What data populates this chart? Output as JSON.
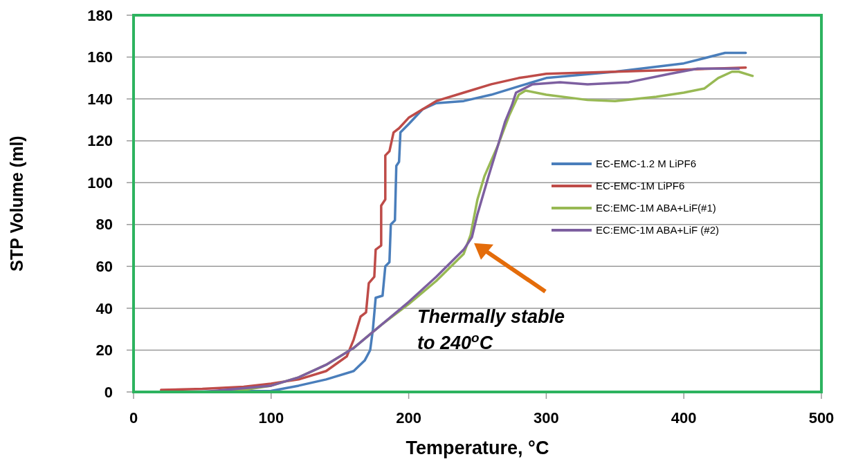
{
  "chart_data": {
    "type": "line",
    "xlabel": "Temperature, °C",
    "ylabel": "STP Volume (ml)",
    "xlim": [
      0,
      500
    ],
    "xticks": [
      0,
      100,
      200,
      300,
      400,
      500
    ],
    "ylim": [
      0,
      180
    ],
    "yticks": [
      0,
      20,
      40,
      60,
      80,
      100,
      120,
      140,
      160,
      180
    ],
    "grid": "y",
    "legend": "right",
    "marker": "none",
    "line_style": "solid",
    "annotations": [
      "Thermally stable\nto 240$^{o}$C"
    ],
    "series": [
      {
        "name": "EC-EMC-1.2  M LiPF6",
        "color": "#4a7ebb",
        "x": [
          20,
          100,
          120,
          140,
          160,
          168,
          172,
          174,
          176,
          181,
          183,
          186,
          187,
          190,
          191,
          193,
          194,
          200,
          210,
          220,
          240,
          260,
          280,
          300,
          350,
          400,
          430,
          445
        ],
        "values": [
          0,
          0.5,
          3,
          6,
          10,
          15,
          20,
          30,
          45,
          46,
          60,
          62,
          80,
          82,
          108,
          110,
          124,
          128,
          135,
          138,
          139,
          142,
          146,
          150,
          153,
          157,
          162,
          162
        ]
      },
      {
        "name": "EC-EMC-1M  LiPF6",
        "color": "#be4b48",
        "x": [
          20,
          50,
          80,
          100,
          120,
          140,
          155,
          160,
          165,
          169,
          171,
          175,
          176,
          180,
          180,
          183,
          183,
          186,
          189,
          193,
          200,
          220,
          240,
          260,
          280,
          300,
          350,
          400,
          445
        ],
        "values": [
          1,
          1.5,
          2.5,
          4,
          6,
          10,
          17,
          25,
          36,
          38,
          52,
          55,
          68,
          70,
          89,
          92,
          113,
          115,
          124,
          126,
          131,
          139,
          143,
          147,
          150,
          152,
          153,
          154,
          155
        ]
      },
      {
        "name": "EC:EMC-1M ABA+LiF(#1)",
        "color": "#98b954",
        "x": [
          70,
          100,
          120,
          140,
          160,
          180,
          200,
          220,
          240,
          245,
          250,
          255,
          265,
          273,
          280,
          285,
          300,
          330,
          350,
          380,
          400,
          415,
          425,
          435,
          440,
          450
        ],
        "values": [
          0,
          3,
          7,
          13,
          21,
          32,
          42,
          53,
          66,
          75,
          92,
          103,
          118,
          132,
          142,
          144,
          142,
          139.5,
          139,
          141,
          143,
          145,
          150,
          153,
          153,
          151
        ]
      },
      {
        "name": "EC:EMC-1M ABA+LiF (#2)",
        "color": "#7d5fa0",
        "x": [
          50,
          100,
          120,
          140,
          160,
          180,
          200,
          220,
          240,
          246,
          250,
          258,
          265,
          270,
          275,
          278,
          290,
          310,
          330,
          360,
          390,
          410,
          440
        ],
        "values": [
          0,
          3,
          7,
          13,
          21,
          32,
          43,
          55,
          68,
          74,
          85,
          103,
          118,
          129,
          137,
          143,
          147,
          148,
          147,
          148,
          152,
          154.5,
          154.5
        ]
      }
    ]
  }
}
